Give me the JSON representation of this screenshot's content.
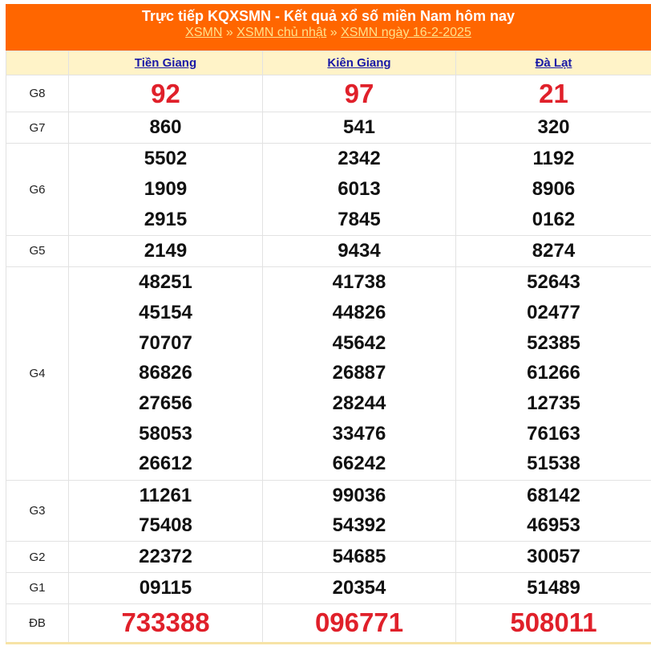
{
  "header": {
    "title": "Trực tiếp KQXSMN - Kết quả xổ số miền Nam hôm nay",
    "breadcrumb": [
      "XSMN",
      "XSMN chủ nhật",
      "XSMN ngày 16-2-2025"
    ],
    "separator": "»"
  },
  "colors": {
    "header_bg": "#ff6600",
    "highlight": "#e0202a",
    "column_header_bg": "#fff3c8"
  },
  "provinces": [
    "Tiền Giang",
    "Kiên Giang",
    "Đà Lạt"
  ],
  "prizes": [
    {
      "label": "G8",
      "results": [
        [
          "92"
        ],
        [
          "97"
        ],
        [
          "21"
        ]
      ]
    },
    {
      "label": "G7",
      "results": [
        [
          "860"
        ],
        [
          "541"
        ],
        [
          "320"
        ]
      ]
    },
    {
      "label": "G6",
      "results": [
        [
          "5502",
          "1909",
          "2915"
        ],
        [
          "2342",
          "6013",
          "7845"
        ],
        [
          "1192",
          "8906",
          "0162"
        ]
      ]
    },
    {
      "label": "G5",
      "results": [
        [
          "2149"
        ],
        [
          "9434"
        ],
        [
          "8274"
        ]
      ]
    },
    {
      "label": "G4",
      "results": [
        [
          "48251",
          "45154",
          "70707",
          "86826",
          "27656",
          "58053",
          "26612"
        ],
        [
          "41738",
          "44826",
          "45642",
          "26887",
          "28244",
          "33476",
          "66242"
        ],
        [
          "52643",
          "02477",
          "52385",
          "61266",
          "12735",
          "76163",
          "51538"
        ]
      ]
    },
    {
      "label": "G3",
      "results": [
        [
          "11261",
          "75408"
        ],
        [
          "99036",
          "54392"
        ],
        [
          "68142",
          "46953"
        ]
      ]
    },
    {
      "label": "G2",
      "results": [
        [
          "22372"
        ],
        [
          "54685"
        ],
        [
          "30057"
        ]
      ]
    },
    {
      "label": "G1",
      "results": [
        [
          "09115"
        ],
        [
          "20354"
        ],
        [
          "51489"
        ]
      ]
    },
    {
      "label": "ĐB",
      "results": [
        [
          "733388"
        ],
        [
          "096771"
        ],
        [
          "508011"
        ]
      ]
    }
  ]
}
